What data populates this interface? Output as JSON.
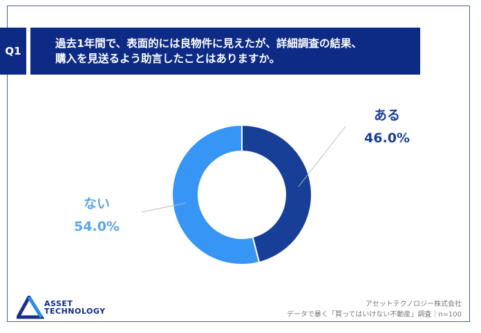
{
  "question": {
    "number": "Q1",
    "line1": "過去1年間で、表面的には良物件に見えたが、詳細調査の結果、",
    "line2": "購入を見送るよう助言したことはありますか。"
  },
  "chart_data": {
    "type": "pie",
    "donut": true,
    "categories": [
      "ある",
      "ない"
    ],
    "values": [
      46.0,
      54.0
    ],
    "labels": [
      "46.0%",
      "54.0%"
    ],
    "colors": [
      "#183f98",
      "#3795f5"
    ]
  },
  "logo": {
    "line1": "ASSET",
    "line2": "TECHNOLOGY"
  },
  "credit": {
    "line1": "アセットテクノロジー株式会社",
    "line2": "データで暴く「買ってはいけない不動産」調査｜n=100"
  }
}
